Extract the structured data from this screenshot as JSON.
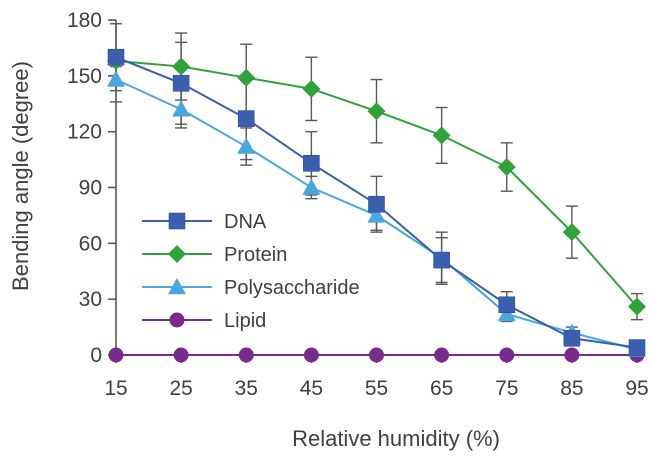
{
  "chart_data": {
    "type": "line",
    "title": "",
    "xlabel": "Relative humidity (%)",
    "ylabel": "Bending angle (degree)",
    "x": [
      15,
      25,
      35,
      45,
      55,
      65,
      75,
      85,
      95
    ],
    "xlim": [
      15,
      95
    ],
    "ylim": [
      0,
      180
    ],
    "xticks": [
      15,
      25,
      35,
      45,
      55,
      65,
      75,
      85,
      95
    ],
    "yticks": [
      0,
      30,
      60,
      90,
      120,
      150,
      180
    ],
    "grid": false,
    "legend_position": "left-center",
    "series": [
      {
        "name": "DNA",
        "marker": "square",
        "color": "#3a5fae",
        "values": [
          160,
          146,
          127,
          103,
          81,
          51,
          27,
          9,
          4
        ],
        "errors": [
          18,
          22,
          22,
          17,
          15,
          12,
          7,
          4,
          2
        ]
      },
      {
        "name": "Protein",
        "marker": "diamond",
        "color": "#31a23a",
        "values": [
          158,
          155,
          149,
          143,
          131,
          118,
          101,
          66,
          26
        ],
        "errors": [
          3,
          18,
          18,
          17,
          17,
          15,
          13,
          14,
          7
        ]
      },
      {
        "name": "Polysaccharide",
        "marker": "triangle",
        "color": "#49a7df",
        "values": [
          148,
          132,
          112,
          90,
          75,
          52,
          22,
          12,
          3
        ],
        "errors": [
          12,
          10,
          10,
          6,
          8,
          14,
          4,
          3,
          2
        ]
      },
      {
        "name": "Lipid",
        "marker": "circle",
        "color": "#7a2a8c",
        "values": [
          0,
          0,
          0,
          0,
          0,
          0,
          0,
          0,
          0
        ],
        "errors": [
          0,
          0,
          0,
          0,
          0,
          0,
          0,
          0,
          0
        ]
      }
    ]
  }
}
